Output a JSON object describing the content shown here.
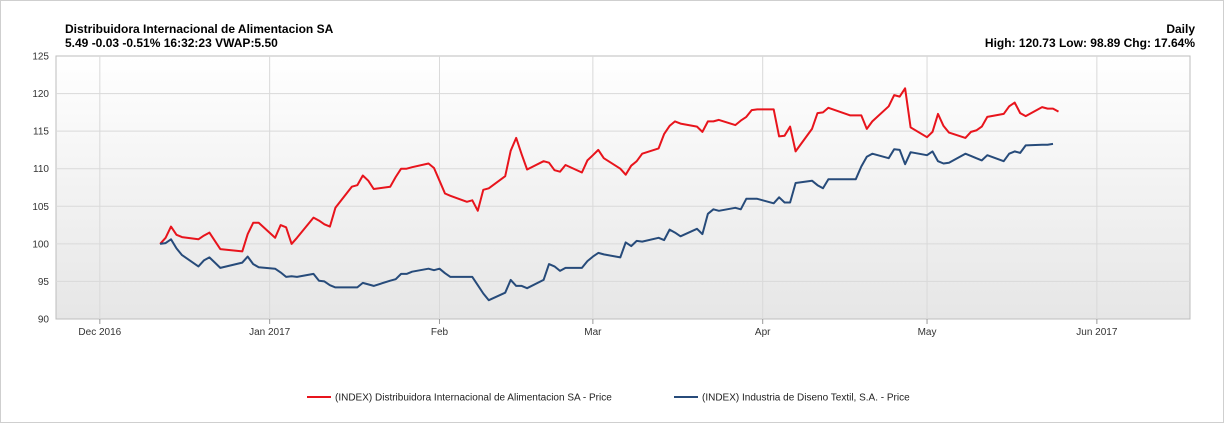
{
  "header": {
    "title": "Distribuidora  Internacional de Alimentacion SA",
    "quote": "5.49  -0.03  -0.51%  16:32:23  VWAP:5.50",
    "period": "Daily",
    "stats": "High: 120.73 Low: 98.89 Chg: 17.64%"
  },
  "colors": {
    "dia": "#e8141c",
    "inditex": "#274b7a",
    "grid": "#d9d9d9"
  },
  "chart_data": {
    "type": "line",
    "title": "Distribuidora  Internacional de Alimentacion SA",
    "ylim": [
      90,
      125
    ],
    "yticks": [
      90,
      95,
      100,
      105,
      110,
      115,
      120,
      125
    ],
    "xlim": [
      "2016-11-23",
      "2017-06-18"
    ],
    "xticks": [
      {
        "date": "2016-12-01",
        "label": "Dec 2016"
      },
      {
        "date": "2017-01-01",
        "label": "Jan 2017"
      },
      {
        "date": "2017-02-01",
        "label": "Feb"
      },
      {
        "date": "2017-03-01",
        "label": "Mar"
      },
      {
        "date": "2017-04-01",
        "label": "Apr"
      },
      {
        "date": "2017-05-01",
        "label": "May"
      },
      {
        "date": "2017-06-01",
        "label": "Jun 2017"
      }
    ],
    "grid": true,
    "legend_position": "bottom",
    "series": [
      {
        "name": "(INDEX) Distribuidora Internacional de Alimentacion SA - Price",
        "color": "#e8141c",
        "points": [
          [
            "2016-12-12",
            100.0
          ],
          [
            "2016-12-13",
            100.8
          ],
          [
            "2016-12-14",
            102.3
          ],
          [
            "2016-12-15",
            101.2
          ],
          [
            "2016-12-16",
            100.9
          ],
          [
            "2016-12-19",
            100.6
          ],
          [
            "2016-12-20",
            101.1
          ],
          [
            "2016-12-21",
            101.5
          ],
          [
            "2016-12-22",
            100.4
          ],
          [
            "2016-12-23",
            99.3
          ],
          [
            "2016-12-27",
            99.0
          ],
          [
            "2016-12-28",
            101.3
          ],
          [
            "2016-12-29",
            102.8
          ],
          [
            "2016-12-30",
            102.8
          ],
          [
            "2017-01-02",
            100.8
          ],
          [
            "2017-01-03",
            102.5
          ],
          [
            "2017-01-04",
            102.2
          ],
          [
            "2017-01-05",
            100.0
          ],
          [
            "2017-01-06",
            100.8
          ],
          [
            "2017-01-09",
            103.5
          ],
          [
            "2017-01-10",
            103.1
          ],
          [
            "2017-01-11",
            102.6
          ],
          [
            "2017-01-12",
            102.3
          ],
          [
            "2017-01-13",
            104.8
          ],
          [
            "2017-01-16",
            107.6
          ],
          [
            "2017-01-17",
            107.8
          ],
          [
            "2017-01-18",
            109.1
          ],
          [
            "2017-01-19",
            108.4
          ],
          [
            "2017-01-20",
            107.3
          ],
          [
            "2017-01-23",
            107.6
          ],
          [
            "2017-01-24",
            108.9
          ],
          [
            "2017-01-25",
            110.0
          ],
          [
            "2017-01-26",
            110.0
          ],
          [
            "2017-01-27",
            110.2
          ],
          [
            "2017-01-30",
            110.7
          ],
          [
            "2017-01-31",
            110.1
          ],
          [
            "2017-02-01",
            108.4
          ],
          [
            "2017-02-02",
            106.7
          ],
          [
            "2017-02-03",
            106.4
          ],
          [
            "2017-02-06",
            105.6
          ],
          [
            "2017-02-07",
            105.8
          ],
          [
            "2017-02-08",
            104.4
          ],
          [
            "2017-02-09",
            107.2
          ],
          [
            "2017-02-10",
            107.4
          ],
          [
            "2017-02-13",
            109.0
          ],
          [
            "2017-02-14",
            112.4
          ],
          [
            "2017-02-15",
            114.1
          ],
          [
            "2017-02-16",
            111.9
          ],
          [
            "2017-02-17",
            109.9
          ],
          [
            "2017-02-20",
            111.0
          ],
          [
            "2017-02-21",
            110.8
          ],
          [
            "2017-02-22",
            109.8
          ],
          [
            "2017-02-23",
            109.6
          ],
          [
            "2017-02-24",
            110.5
          ],
          [
            "2017-02-27",
            109.5
          ],
          [
            "2017-02-28",
            111.1
          ],
          [
            "2017-03-01",
            111.8
          ],
          [
            "2017-03-02",
            112.5
          ],
          [
            "2017-03-03",
            111.4
          ],
          [
            "2017-03-06",
            110.0
          ],
          [
            "2017-03-07",
            109.2
          ],
          [
            "2017-03-08",
            110.4
          ],
          [
            "2017-03-09",
            111.0
          ],
          [
            "2017-03-10",
            112.0
          ],
          [
            "2017-03-13",
            112.7
          ],
          [
            "2017-03-14",
            114.6
          ],
          [
            "2017-03-15",
            115.7
          ],
          [
            "2017-03-16",
            116.3
          ],
          [
            "2017-03-17",
            116.0
          ],
          [
            "2017-03-20",
            115.6
          ],
          [
            "2017-03-21",
            114.9
          ],
          [
            "2017-03-22",
            116.3
          ],
          [
            "2017-03-23",
            116.3
          ],
          [
            "2017-03-24",
            116.5
          ],
          [
            "2017-03-27",
            115.8
          ],
          [
            "2017-03-28",
            116.4
          ],
          [
            "2017-03-29",
            116.9
          ],
          [
            "2017-03-30",
            117.8
          ],
          [
            "2017-03-31",
            117.9
          ],
          [
            "2017-04-03",
            117.9
          ],
          [
            "2017-04-04",
            114.3
          ],
          [
            "2017-04-05",
            114.4
          ],
          [
            "2017-04-06",
            115.6
          ],
          [
            "2017-04-07",
            112.3
          ],
          [
            "2017-04-10",
            115.3
          ],
          [
            "2017-04-11",
            117.4
          ],
          [
            "2017-04-12",
            117.5
          ],
          [
            "2017-04-13",
            118.1
          ],
          [
            "2017-04-17",
            117.1
          ],
          [
            "2017-04-18",
            117.1
          ],
          [
            "2017-04-19",
            117.1
          ],
          [
            "2017-04-20",
            115.3
          ],
          [
            "2017-04-21",
            116.3
          ],
          [
            "2017-04-24",
            118.3
          ],
          [
            "2017-04-25",
            119.8
          ],
          [
            "2017-04-26",
            119.6
          ],
          [
            "2017-04-27",
            120.7
          ],
          [
            "2017-04-28",
            115.5
          ],
          [
            "2017-05-01",
            114.2
          ],
          [
            "2017-05-02",
            114.9
          ],
          [
            "2017-05-03",
            117.3
          ],
          [
            "2017-05-04",
            115.7
          ],
          [
            "2017-05-05",
            114.8
          ],
          [
            "2017-05-08",
            114.1
          ],
          [
            "2017-05-09",
            114.9
          ],
          [
            "2017-05-10",
            115.1
          ],
          [
            "2017-05-11",
            115.6
          ],
          [
            "2017-05-12",
            116.9
          ],
          [
            "2017-05-15",
            117.3
          ],
          [
            "2017-05-16",
            118.3
          ],
          [
            "2017-05-17",
            118.8
          ],
          [
            "2017-05-18",
            117.4
          ],
          [
            "2017-05-19",
            117.0
          ],
          [
            "2017-05-22",
            118.2
          ],
          [
            "2017-05-23",
            118.0
          ],
          [
            "2017-05-24",
            118.0
          ],
          [
            "2017-05-25",
            117.6
          ]
        ]
      },
      {
        "name": "(INDEX) Industria de Diseno Textil, S.A. - Price",
        "color": "#274b7a",
        "points": [
          [
            "2016-12-12",
            100.0
          ],
          [
            "2016-12-13",
            100.1
          ],
          [
            "2016-12-14",
            100.6
          ],
          [
            "2016-12-15",
            99.4
          ],
          [
            "2016-12-16",
            98.5
          ],
          [
            "2016-12-19",
            97.0
          ],
          [
            "2016-12-20",
            97.8
          ],
          [
            "2016-12-21",
            98.2
          ],
          [
            "2016-12-22",
            97.5
          ],
          [
            "2016-12-23",
            96.8
          ],
          [
            "2016-12-27",
            97.5
          ],
          [
            "2016-12-28",
            98.3
          ],
          [
            "2016-12-29",
            97.3
          ],
          [
            "2016-12-30",
            96.9
          ],
          [
            "2017-01-02",
            96.7
          ],
          [
            "2017-01-03",
            96.2
          ],
          [
            "2017-01-04",
            95.6
          ],
          [
            "2017-01-05",
            95.7
          ],
          [
            "2017-01-06",
            95.6
          ],
          [
            "2017-01-09",
            96.0
          ],
          [
            "2017-01-10",
            95.1
          ],
          [
            "2017-01-11",
            95.0
          ],
          [
            "2017-01-12",
            94.5
          ],
          [
            "2017-01-13",
            94.2
          ],
          [
            "2017-01-16",
            94.2
          ],
          [
            "2017-01-17",
            94.2
          ],
          [
            "2017-01-18",
            94.8
          ],
          [
            "2017-01-19",
            94.6
          ],
          [
            "2017-01-20",
            94.4
          ],
          [
            "2017-01-23",
            95.1
          ],
          [
            "2017-01-24",
            95.3
          ],
          [
            "2017-01-25",
            96.0
          ],
          [
            "2017-01-26",
            96.0
          ],
          [
            "2017-01-27",
            96.3
          ],
          [
            "2017-01-30",
            96.7
          ],
          [
            "2017-01-31",
            96.5
          ],
          [
            "2017-02-01",
            96.7
          ],
          [
            "2017-02-02",
            96.1
          ],
          [
            "2017-02-03",
            95.6
          ],
          [
            "2017-02-06",
            95.6
          ],
          [
            "2017-02-07",
            95.6
          ],
          [
            "2017-02-08",
            94.5
          ],
          [
            "2017-02-09",
            93.4
          ],
          [
            "2017-02-10",
            92.5
          ],
          [
            "2017-02-13",
            93.5
          ],
          [
            "2017-02-14",
            95.2
          ],
          [
            "2017-02-15",
            94.4
          ],
          [
            "2017-02-16",
            94.4
          ],
          [
            "2017-02-17",
            94.1
          ],
          [
            "2017-02-20",
            95.2
          ],
          [
            "2017-02-21",
            97.3
          ],
          [
            "2017-02-22",
            97.0
          ],
          [
            "2017-02-23",
            96.4
          ],
          [
            "2017-02-24",
            96.8
          ],
          [
            "2017-02-27",
            96.8
          ],
          [
            "2017-02-28",
            97.7
          ],
          [
            "2017-03-01",
            98.3
          ],
          [
            "2017-03-02",
            98.8
          ],
          [
            "2017-03-03",
            98.6
          ],
          [
            "2017-03-06",
            98.2
          ],
          [
            "2017-03-07",
            100.2
          ],
          [
            "2017-03-08",
            99.7
          ],
          [
            "2017-03-09",
            100.4
          ],
          [
            "2017-03-10",
            100.3
          ],
          [
            "2017-03-13",
            100.8
          ],
          [
            "2017-03-14",
            100.5
          ],
          [
            "2017-03-15",
            101.9
          ],
          [
            "2017-03-16",
            101.5
          ],
          [
            "2017-03-17",
            101.0
          ],
          [
            "2017-03-20",
            102.0
          ],
          [
            "2017-03-21",
            101.3
          ],
          [
            "2017-03-22",
            104.0
          ],
          [
            "2017-03-23",
            104.6
          ],
          [
            "2017-03-24",
            104.4
          ],
          [
            "2017-03-27",
            104.8
          ],
          [
            "2017-03-28",
            104.6
          ],
          [
            "2017-03-29",
            106.0
          ],
          [
            "2017-03-30",
            106.0
          ],
          [
            "2017-03-31",
            106.0
          ],
          [
            "2017-04-03",
            105.4
          ],
          [
            "2017-04-04",
            106.2
          ],
          [
            "2017-04-05",
            105.5
          ],
          [
            "2017-04-06",
            105.5
          ],
          [
            "2017-04-07",
            108.1
          ],
          [
            "2017-04-10",
            108.4
          ],
          [
            "2017-04-11",
            107.8
          ],
          [
            "2017-04-12",
            107.4
          ],
          [
            "2017-04-13",
            108.6
          ],
          [
            "2017-04-17",
            108.6
          ],
          [
            "2017-04-18",
            108.6
          ],
          [
            "2017-04-19",
            110.3
          ],
          [
            "2017-04-20",
            111.6
          ],
          [
            "2017-04-21",
            112.0
          ],
          [
            "2017-04-24",
            111.4
          ],
          [
            "2017-04-25",
            112.6
          ],
          [
            "2017-04-26",
            112.5
          ],
          [
            "2017-04-27",
            110.6
          ],
          [
            "2017-04-28",
            112.2
          ],
          [
            "2017-05-01",
            111.8
          ],
          [
            "2017-05-02",
            112.3
          ],
          [
            "2017-05-03",
            111.0
          ],
          [
            "2017-05-04",
            110.7
          ],
          [
            "2017-05-05",
            110.8
          ],
          [
            "2017-05-08",
            112.0
          ],
          [
            "2017-05-09",
            111.7
          ],
          [
            "2017-05-10",
            111.4
          ],
          [
            "2017-05-11",
            111.1
          ],
          [
            "2017-05-12",
            111.8
          ],
          [
            "2017-05-15",
            111.0
          ],
          [
            "2017-05-16",
            112.0
          ],
          [
            "2017-05-17",
            112.3
          ],
          [
            "2017-05-18",
            112.1
          ],
          [
            "2017-05-19",
            113.1
          ],
          [
            "2017-05-22",
            113.2
          ],
          [
            "2017-05-23",
            113.2
          ],
          [
            "2017-05-24",
            113.3
          ]
        ]
      }
    ]
  }
}
